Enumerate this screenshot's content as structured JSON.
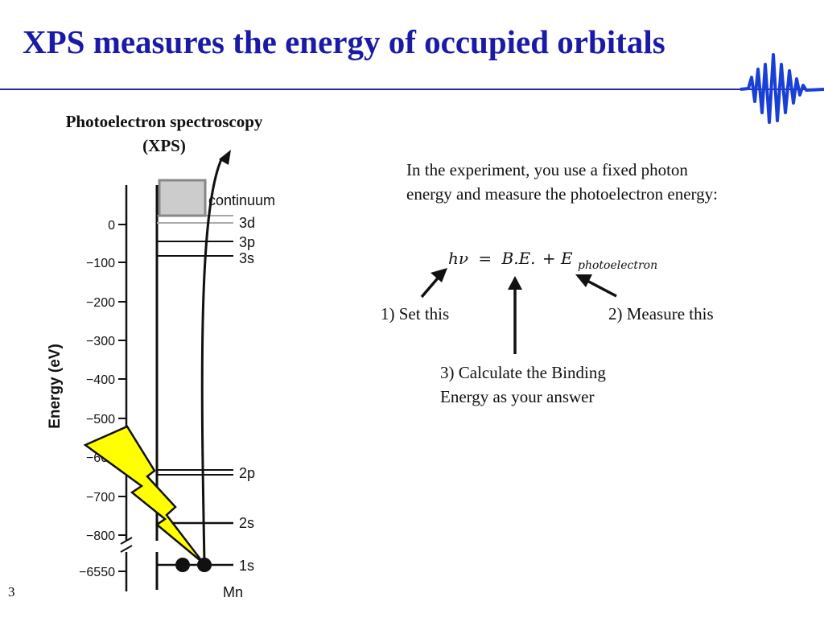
{
  "slide": {
    "title": "XPS measures the energy of occupied orbitals",
    "page_number": "3"
  },
  "subtitle": {
    "line1": "Photoelectron spectroscopy",
    "line2": "(XPS)"
  },
  "diagram": {
    "axis_label": "Energy (eV)",
    "ticks": [
      "0",
      "−100",
      "−200",
      "−300",
      "−400",
      "−500",
      "−600",
      "−700",
      "−800",
      "−6550"
    ],
    "element": "Mn",
    "levels": {
      "continuum": "continuum",
      "l3d": "3d",
      "l3p": "3p",
      "l3s": "3s",
      "l2p": "2p",
      "l2s": "2s",
      "l1s": "1s"
    },
    "colors": {
      "bolt": "#ffff00",
      "continuum_fill": "#cccccc",
      "continuum_stroke": "#888888",
      "level_3d": "#aaaaaa"
    }
  },
  "text": {
    "intro_line1": "In the experiment, you use a fixed photon",
    "intro_line2": "energy and measure the photoelectron energy:",
    "eq_hv": "hν",
    "eq_eq": "=",
    "eq_be": "B.E.",
    "eq_plus": "+",
    "eq_e": "E",
    "eq_sub": "photoelectron",
    "set": "1) Set this",
    "measure": "2) Measure this",
    "calc_line1": "3) Calculate the Binding",
    "calc_line2": "Energy as your answer"
  }
}
